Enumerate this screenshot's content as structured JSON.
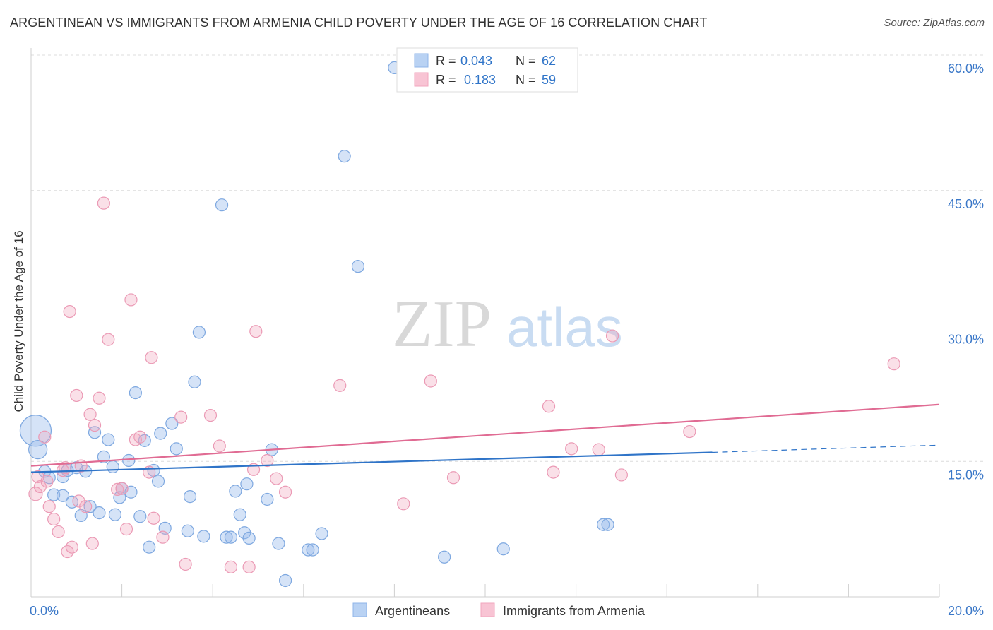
{
  "chart_data": {
    "type": "scatter",
    "title": "ARGENTINEAN VS IMMIGRANTS FROM ARMENIA CHILD POVERTY UNDER THE AGE OF 16 CORRELATION CHART",
    "source": "Source: ZipAtlas.com",
    "ylabel": "Child Poverty Under the Age of 16",
    "xlabel": "",
    "xlim": [
      0,
      20
    ],
    "ylim": [
      0,
      60
    ],
    "x_tick_labels": [
      {
        "value": 0,
        "label": "0.0%"
      },
      {
        "value": 20,
        "label": "20.0%"
      }
    ],
    "y_tick_labels": [
      {
        "value": 15,
        "label": "15.0%"
      },
      {
        "value": 30,
        "label": "30.0%"
      },
      {
        "value": 45,
        "label": "45.0%"
      },
      {
        "value": 60,
        "label": "60.0%"
      }
    ],
    "watermark": {
      "part1": "ZIP",
      "part2": "atlas"
    },
    "legend_top": [
      {
        "r_label": "R =",
        "r_value": "0.043",
        "n_label": "N =",
        "n_value": "62"
      },
      {
        "r_label": "R =",
        "r_value": " 0.183",
        "n_label": "N =",
        "n_value": "59"
      }
    ],
    "series": [
      {
        "name": "Argentineans",
        "color": "#8fb4e8",
        "line_color": "#2f74c8",
        "trend": {
          "x0": 0,
          "y0": 13.8,
          "x1": 15,
          "y1": 16.0,
          "dash_to_x": 20,
          "dash_to_y": 16.8
        },
        "points": [
          [
            0.1,
            18.4
          ],
          [
            0.15,
            16.3
          ],
          [
            0.3,
            13.9
          ],
          [
            0.4,
            13.2
          ],
          [
            0.5,
            11.3
          ],
          [
            0.7,
            13.3
          ],
          [
            0.7,
            11.2
          ],
          [
            0.8,
            14.0
          ],
          [
            0.9,
            10.5
          ],
          [
            1.0,
            14.3
          ],
          [
            1.1,
            9.0
          ],
          [
            1.2,
            13.9
          ],
          [
            1.3,
            10.0
          ],
          [
            1.4,
            18.2
          ],
          [
            1.5,
            9.3
          ],
          [
            1.6,
            15.5
          ],
          [
            1.7,
            17.4
          ],
          [
            1.8,
            14.4
          ],
          [
            1.85,
            9.1
          ],
          [
            1.95,
            11.0
          ],
          [
            2.0,
            12.0
          ],
          [
            2.15,
            15.1
          ],
          [
            2.2,
            11.6
          ],
          [
            2.3,
            22.6
          ],
          [
            2.4,
            8.9
          ],
          [
            2.5,
            17.3
          ],
          [
            2.6,
            5.5
          ],
          [
            2.7,
            14.0
          ],
          [
            2.8,
            12.8
          ],
          [
            2.85,
            18.1
          ],
          [
            2.95,
            7.6
          ],
          [
            3.1,
            19.2
          ],
          [
            3.2,
            16.4
          ],
          [
            3.45,
            7.3
          ],
          [
            3.5,
            11.1
          ],
          [
            3.6,
            23.8
          ],
          [
            3.7,
            29.3
          ],
          [
            3.8,
            6.7
          ],
          [
            4.2,
            43.4
          ],
          [
            4.3,
            6.6
          ],
          [
            4.4,
            6.6
          ],
          [
            4.5,
            11.7
          ],
          [
            4.6,
            9.1
          ],
          [
            4.7,
            7.1
          ],
          [
            4.75,
            12.5
          ],
          [
            4.8,
            6.5
          ],
          [
            5.2,
            10.8
          ],
          [
            5.3,
            16.3
          ],
          [
            5.45,
            5.9
          ],
          [
            5.6,
            1.8
          ],
          [
            6.1,
            5.2
          ],
          [
            6.2,
            5.2
          ],
          [
            6.4,
            7.0
          ],
          [
            6.9,
            48.8
          ],
          [
            7.2,
            36.6
          ],
          [
            8.0,
            58.6
          ],
          [
            9.1,
            4.4
          ],
          [
            10.4,
            5.3
          ],
          [
            12.6,
            8.0
          ],
          [
            12.7,
            8.0
          ]
        ]
      },
      {
        "name": "Immigrants from Armenia",
        "color": "#f2a6be",
        "line_color": "#e06b93",
        "trend": {
          "x0": 0,
          "y0": 14.5,
          "x1": 20,
          "y1": 21.3
        },
        "points": [
          [
            0.1,
            11.4
          ],
          [
            0.15,
            13.3
          ],
          [
            0.2,
            12.2
          ],
          [
            0.3,
            17.7
          ],
          [
            0.35,
            12.8
          ],
          [
            0.4,
            10.0
          ],
          [
            0.5,
            8.6
          ],
          [
            0.6,
            7.2
          ],
          [
            0.7,
            14.0
          ],
          [
            0.75,
            14.3
          ],
          [
            0.8,
            5.0
          ],
          [
            0.85,
            31.6
          ],
          [
            0.9,
            5.5
          ],
          [
            1.0,
            22.3
          ],
          [
            1.05,
            10.6
          ],
          [
            1.1,
            14.5
          ],
          [
            1.2,
            10.0
          ],
          [
            1.3,
            20.2
          ],
          [
            1.35,
            5.9
          ],
          [
            1.4,
            19.0
          ],
          [
            1.5,
            22.0
          ],
          [
            1.6,
            43.6
          ],
          [
            1.7,
            28.5
          ],
          [
            1.9,
            11.9
          ],
          [
            2.0,
            12.0
          ],
          [
            2.1,
            7.5
          ],
          [
            2.2,
            32.9
          ],
          [
            2.3,
            17.4
          ],
          [
            2.4,
            17.7
          ],
          [
            2.6,
            13.8
          ],
          [
            2.65,
            26.5
          ],
          [
            2.7,
            8.7
          ],
          [
            2.9,
            6.6
          ],
          [
            3.3,
            19.9
          ],
          [
            3.4,
            3.6
          ],
          [
            3.95,
            20.1
          ],
          [
            4.15,
            16.7
          ],
          [
            4.4,
            3.3
          ],
          [
            4.8,
            3.3
          ],
          [
            4.9,
            14.1
          ],
          [
            4.95,
            29.4
          ],
          [
            5.2,
            15.1
          ],
          [
            5.4,
            13.1
          ],
          [
            5.6,
            11.6
          ],
          [
            6.8,
            23.4
          ],
          [
            8.2,
            10.3
          ],
          [
            8.8,
            23.9
          ],
          [
            9.3,
            13.2
          ],
          [
            11.4,
            21.1
          ],
          [
            11.5,
            13.8
          ],
          [
            11.9,
            16.4
          ],
          [
            12.5,
            16.3
          ],
          [
            12.8,
            28.9
          ],
          [
            13.0,
            13.5
          ],
          [
            14.5,
            18.3
          ],
          [
            19.0,
            25.8
          ]
        ]
      }
    ]
  }
}
